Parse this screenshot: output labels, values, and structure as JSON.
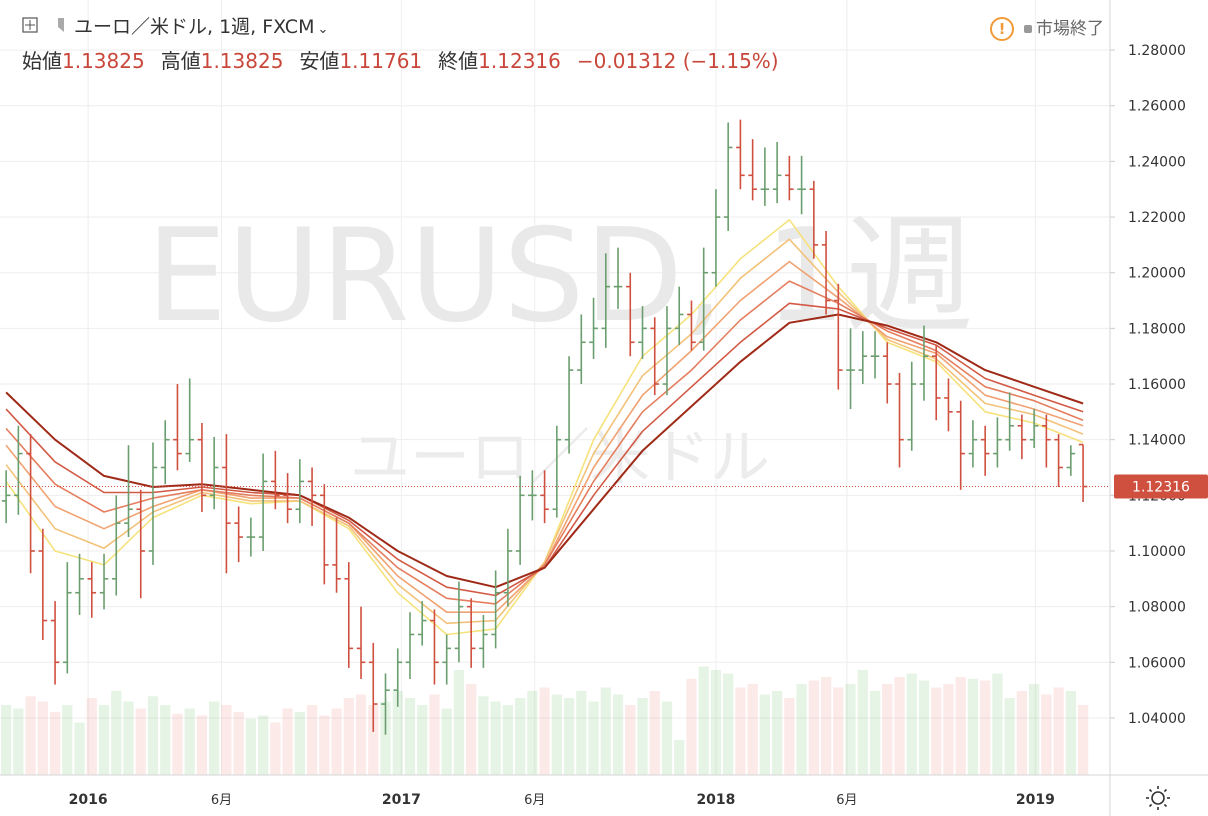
{
  "chart_data": {
    "type": "ohlc",
    "header": {
      "symbol": "ユーロ／米ドル, 1週, FXCM",
      "status": "市場終了",
      "open_label": "始値",
      "open": "1.13825",
      "high_label": "高値",
      "high": "1.13825",
      "low_label": "安値",
      "low": "1.11761",
      "close_label": "終値",
      "close": "1.12316",
      "change": "−0.01312 (−1.15%)"
    },
    "watermark": "EURUSD, 1週",
    "watermark_sub": "ユーロ／米ドル",
    "up_color": "#6b9e6e",
    "down_color": "#d0503f",
    "ohlc": [
      [
        1.118,
        1.129,
        1.11,
        1.12
      ],
      [
        1.12,
        1.145,
        1.113,
        1.135
      ],
      [
        1.135,
        1.142,
        1.092,
        1.1
      ],
      [
        1.1,
        1.108,
        1.068,
        1.075
      ],
      [
        1.075,
        1.082,
        1.052,
        1.06
      ],
      [
        1.06,
        1.096,
        1.056,
        1.085
      ],
      [
        1.085,
        1.099,
        1.077,
        1.09
      ],
      [
        1.09,
        1.096,
        1.076,
        1.085
      ],
      [
        1.085,
        1.099,
        1.079,
        1.09
      ],
      [
        1.09,
        1.12,
        1.084,
        1.11
      ],
      [
        1.11,
        1.138,
        1.105,
        1.115
      ],
      [
        1.115,
        1.122,
        1.083,
        1.1
      ],
      [
        1.1,
        1.139,
        1.095,
        1.13
      ],
      [
        1.13,
        1.147,
        1.124,
        1.14
      ],
      [
        1.14,
        1.16,
        1.129,
        1.135
      ],
      [
        1.135,
        1.162,
        1.132,
        1.14
      ],
      [
        1.14,
        1.146,
        1.114,
        1.12
      ],
      [
        1.12,
        1.141,
        1.115,
        1.13
      ],
      [
        1.13,
        1.142,
        1.092,
        1.11
      ],
      [
        1.11,
        1.116,
        1.096,
        1.105
      ],
      [
        1.105,
        1.112,
        1.098,
        1.105
      ],
      [
        1.105,
        1.135,
        1.1,
        1.125
      ],
      [
        1.125,
        1.136,
        1.115,
        1.12
      ],
      [
        1.12,
        1.128,
        1.11,
        1.115
      ],
      [
        1.115,
        1.133,
        1.11,
        1.125
      ],
      [
        1.125,
        1.13,
        1.109,
        1.12
      ],
      [
        1.12,
        1.124,
        1.088,
        1.095
      ],
      [
        1.095,
        1.112,
        1.085,
        1.09
      ],
      [
        1.09,
        1.096,
        1.058,
        1.065
      ],
      [
        1.065,
        1.08,
        1.054,
        1.06
      ],
      [
        1.06,
        1.067,
        1.035,
        1.045
      ],
      [
        1.045,
        1.056,
        1.034,
        1.05
      ],
      [
        1.05,
        1.065,
        1.044,
        1.06
      ],
      [
        1.06,
        1.078,
        1.054,
        1.07
      ],
      [
        1.07,
        1.082,
        1.066,
        1.075
      ],
      [
        1.075,
        1.079,
        1.052,
        1.06
      ],
      [
        1.06,
        1.07,
        1.052,
        1.065
      ],
      [
        1.065,
        1.089,
        1.06,
        1.08
      ],
      [
        1.08,
        1.083,
        1.058,
        1.065
      ],
      [
        1.065,
        1.077,
        1.058,
        1.07
      ],
      [
        1.07,
        1.093,
        1.065,
        1.085
      ],
      [
        1.085,
        1.108,
        1.08,
        1.1
      ],
      [
        1.1,
        1.127,
        1.095,
        1.12
      ],
      [
        1.12,
        1.129,
        1.111,
        1.12
      ],
      [
        1.12,
        1.129,
        1.11,
        1.115
      ],
      [
        1.115,
        1.145,
        1.112,
        1.14
      ],
      [
        1.14,
        1.17,
        1.135,
        1.165
      ],
      [
        1.165,
        1.185,
        1.16,
        1.175
      ],
      [
        1.175,
        1.191,
        1.169,
        1.18
      ],
      [
        1.18,
        1.207,
        1.173,
        1.195
      ],
      [
        1.195,
        1.209,
        1.187,
        1.195
      ],
      [
        1.195,
        1.2,
        1.17,
        1.175
      ],
      [
        1.175,
        1.188,
        1.169,
        1.18
      ],
      [
        1.18,
        1.184,
        1.156,
        1.16
      ],
      [
        1.16,
        1.188,
        1.156,
        1.18
      ],
      [
        1.18,
        1.195,
        1.174,
        1.185
      ],
      [
        1.185,
        1.19,
        1.172,
        1.175
      ],
      [
        1.175,
        1.209,
        1.172,
        1.2
      ],
      [
        1.2,
        1.23,
        1.195,
        1.22
      ],
      [
        1.22,
        1.254,
        1.215,
        1.245
      ],
      [
        1.245,
        1.255,
        1.23,
        1.235
      ],
      [
        1.235,
        1.248,
        1.226,
        1.23
      ],
      [
        1.23,
        1.245,
        1.224,
        1.23
      ],
      [
        1.23,
        1.247,
        1.225,
        1.235
      ],
      [
        1.235,
        1.242,
        1.226,
        1.23
      ],
      [
        1.23,
        1.242,
        1.221,
        1.23
      ],
      [
        1.23,
        1.233,
        1.205,
        1.21
      ],
      [
        1.21,
        1.215,
        1.185,
        1.19
      ],
      [
        1.19,
        1.196,
        1.158,
        1.165
      ],
      [
        1.165,
        1.18,
        1.151,
        1.165
      ],
      [
        1.165,
        1.179,
        1.16,
        1.17
      ],
      [
        1.17,
        1.179,
        1.162,
        1.17
      ],
      [
        1.17,
        1.175,
        1.153,
        1.16
      ],
      [
        1.16,
        1.164,
        1.13,
        1.14
      ],
      [
        1.14,
        1.168,
        1.136,
        1.16
      ],
      [
        1.16,
        1.181,
        1.154,
        1.17
      ],
      [
        1.17,
        1.174,
        1.147,
        1.155
      ],
      [
        1.155,
        1.162,
        1.143,
        1.15
      ],
      [
        1.15,
        1.154,
        1.122,
        1.135
      ],
      [
        1.135,
        1.147,
        1.13,
        1.14
      ],
      [
        1.14,
        1.145,
        1.127,
        1.135
      ],
      [
        1.135,
        1.148,
        1.13,
        1.14
      ],
      [
        1.14,
        1.157,
        1.136,
        1.145
      ],
      [
        1.145,
        1.149,
        1.133,
        1.14
      ],
      [
        1.14,
        1.151,
        1.137,
        1.145
      ],
      [
        1.145,
        1.149,
        1.13,
        1.14
      ],
      [
        1.14,
        1.142,
        1.123,
        1.13
      ],
      [
        1.13,
        1.138,
        1.127,
        1.135
      ],
      [
        1.13825,
        1.13825,
        1.11761,
        1.12316
      ]
    ],
    "volume": [
      40,
      38,
      45,
      42,
      36,
      40,
      30,
      44,
      40,
      48,
      42,
      38,
      45,
      40,
      35,
      38,
      34,
      42,
      40,
      36,
      32,
      34,
      30,
      38,
      36,
      40,
      34,
      38,
      44,
      46,
      40,
      42,
      48,
      44,
      40,
      46,
      38,
      60,
      52,
      45,
      42,
      40,
      44,
      48,
      50,
      46,
      44,
      48,
      42,
      50,
      46,
      40,
      44,
      48,
      42,
      20,
      55,
      62,
      60,
      58,
      50,
      52,
      46,
      48,
      44,
      52,
      54,
      56,
      50,
      52,
      60,
      48,
      52,
      56,
      58,
      54,
      50,
      52,
      56,
      55,
      54,
      58,
      44,
      48,
      52,
      46,
      50,
      48,
      40
    ],
    "ma_x": [
      0,
      4,
      8,
      12,
      16,
      20,
      24,
      28,
      32,
      36,
      40,
      44,
      48,
      52,
      56,
      60,
      64,
      68,
      72,
      76,
      80,
      84,
      88
    ],
    "series": [
      {
        "color": "#f6e27c",
        "values": [
          1.125,
          1.1,
          1.095,
          1.112,
          1.12,
          1.117,
          1.118,
          1.108,
          1.085,
          1.07,
          1.072,
          1.096,
          1.14,
          1.17,
          1.185,
          1.205,
          1.219,
          1.195,
          1.175,
          1.168,
          1.15,
          1.146,
          1.139
        ]
      },
      {
        "color": "#f3c27a",
        "values": [
          1.131,
          1.108,
          1.101,
          1.114,
          1.121,
          1.118,
          1.118,
          1.109,
          1.088,
          1.074,
          1.075,
          1.096,
          1.135,
          1.163,
          1.178,
          1.198,
          1.212,
          1.193,
          1.176,
          1.169,
          1.153,
          1.149,
          1.142
        ]
      },
      {
        "color": "#f0a272",
        "values": [
          1.138,
          1.116,
          1.108,
          1.116,
          1.122,
          1.119,
          1.119,
          1.11,
          1.091,
          1.078,
          1.078,
          1.095,
          1.13,
          1.156,
          1.172,
          1.19,
          1.204,
          1.191,
          1.177,
          1.171,
          1.156,
          1.151,
          1.145
        ]
      },
      {
        "color": "#e57e5e",
        "values": [
          1.144,
          1.124,
          1.114,
          1.119,
          1.122,
          1.12,
          1.119,
          1.11,
          1.094,
          1.083,
          1.081,
          1.095,
          1.125,
          1.15,
          1.165,
          1.183,
          1.197,
          1.189,
          1.179,
          1.172,
          1.159,
          1.154,
          1.147
        ]
      },
      {
        "color": "#d25a45",
        "values": [
          1.151,
          1.132,
          1.121,
          1.121,
          1.123,
          1.121,
          1.12,
          1.111,
          1.097,
          1.087,
          1.084,
          1.094,
          1.12,
          1.143,
          1.159,
          1.175,
          1.189,
          1.187,
          1.18,
          1.174,
          1.162,
          1.156,
          1.15
        ]
      },
      {
        "color": "#9e2a17",
        "values": [
          1.157,
          1.14,
          1.127,
          1.123,
          1.124,
          1.122,
          1.12,
          1.112,
          1.1,
          1.091,
          1.087,
          1.094,
          1.115,
          1.136,
          1.152,
          1.168,
          1.182,
          1.185,
          1.181,
          1.175,
          1.165,
          1.159,
          1.153
        ]
      }
    ],
    "last_price": 1.12316,
    "xlim": [
      -0.5,
      90.2
    ],
    "xticks": [
      {
        "value": 6.7,
        "label": "2016"
      },
      {
        "value": 17.6,
        "label": "6月"
      },
      {
        "value": 32.3,
        "label": "2017"
      },
      {
        "value": 43.2,
        "label": "6月"
      },
      {
        "value": 58,
        "label": "2018"
      },
      {
        "value": 68.7,
        "label": "6月"
      },
      {
        "value": 84.1,
        "label": "2019"
      }
    ],
    "ylim": [
      1.0195,
      1.298
    ],
    "yticks": [
      {
        "value": 1.04,
        "label": "1.04000"
      },
      {
        "value": 1.06,
        "label": "1.06000"
      },
      {
        "value": 1.08,
        "label": "1.08000"
      },
      {
        "value": 1.1,
        "label": "1.10000"
      },
      {
        "value": 1.12,
        "label": "1.12000"
      },
      {
        "value": 1.14,
        "label": "1.14000"
      },
      {
        "value": 1.16,
        "label": "1.16000"
      },
      {
        "value": 1.18,
        "label": "1.18000"
      },
      {
        "value": 1.2,
        "label": "1.20000"
      },
      {
        "value": 1.22,
        "label": "1.22000"
      },
      {
        "value": 1.24,
        "label": "1.24000"
      },
      {
        "value": 1.26,
        "label": "1.26000"
      },
      {
        "value": 1.28,
        "label": "1.28000"
      }
    ],
    "grid": true
  }
}
